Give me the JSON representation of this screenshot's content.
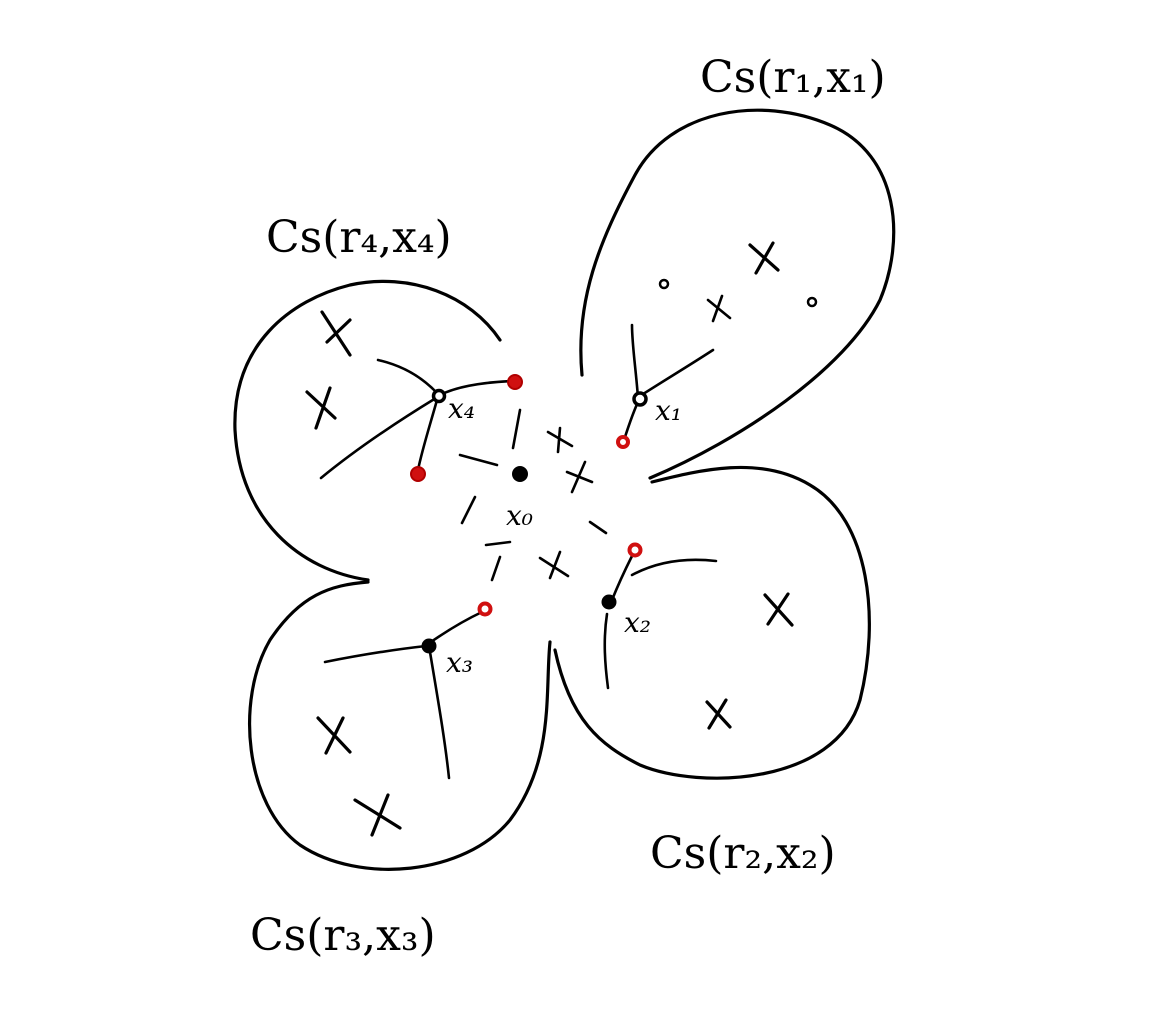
{
  "diagram": {
    "lobe_labels": {
      "r1": "Cs(r₁,x₁)",
      "r2": "Cs(r₂,x₂)",
      "r3": "Cs(r₃,x₃)",
      "r4": "Cs(r₄,x₄)"
    },
    "point_labels": {
      "x0": "x₀",
      "x1": "x₁",
      "x2": "x₂",
      "x3": "x₃",
      "x4": "x₄"
    },
    "colors": {
      "ink": "#000000",
      "marker": "#d01010",
      "background": "#ffffff"
    }
  }
}
